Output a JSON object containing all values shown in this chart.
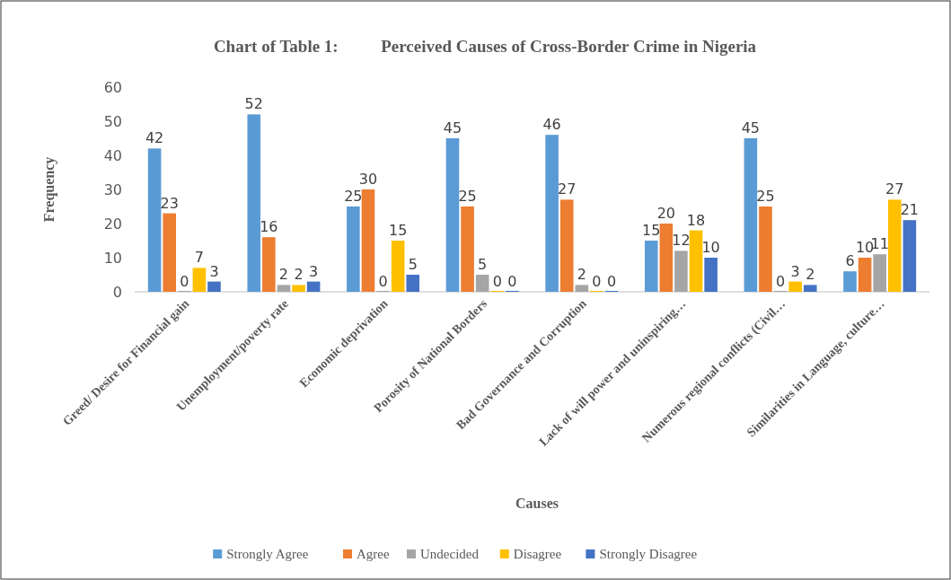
{
  "chart_data": {
    "type": "bar",
    "title": "Chart of Table 1:          Perceived Causes of Cross-Border Crime in Nigeria",
    "xlabel": "Causes",
    "ylabel": "Frequency",
    "categories": [
      "Greed/ Desire for Financial gain",
      "Unemployment/poverty rate",
      "Economic deprivation",
      "Porosity of National Borders",
      "Bad Governance and Corruption",
      "Lack of will power and uninspiring…",
      "Numerous regional conflicts (Civil…",
      "Similarities in Language, culture…"
    ],
    "series": [
      {
        "name": "Strongly Agree",
        "color": "#5b9bd5",
        "values": [
          42,
          52,
          25,
          45,
          46,
          15,
          45,
          6
        ]
      },
      {
        "name": "Agree",
        "color": "#ed7d31",
        "values": [
          23,
          16,
          30,
          25,
          27,
          20,
          25,
          10
        ]
      },
      {
        "name": "Undecided",
        "color": "#a5a5a5",
        "values": [
          0,
          2,
          0,
          5,
          2,
          12,
          0,
          11
        ]
      },
      {
        "name": "Disagree",
        "color": "#ffc000",
        "values": [
          7,
          2,
          15,
          0,
          0,
          18,
          3,
          27
        ]
      },
      {
        "name": "Strongly Disagree",
        "color": "#4472c4",
        "values": [
          3,
          3,
          5,
          0,
          0,
          10,
          2,
          21
        ]
      }
    ],
    "ylim": [
      0,
      60
    ],
    "yticks": [
      0,
      10,
      20,
      30,
      40,
      50,
      60
    ],
    "grid": false,
    "legend": "bottom",
    "data_labels": true
  }
}
